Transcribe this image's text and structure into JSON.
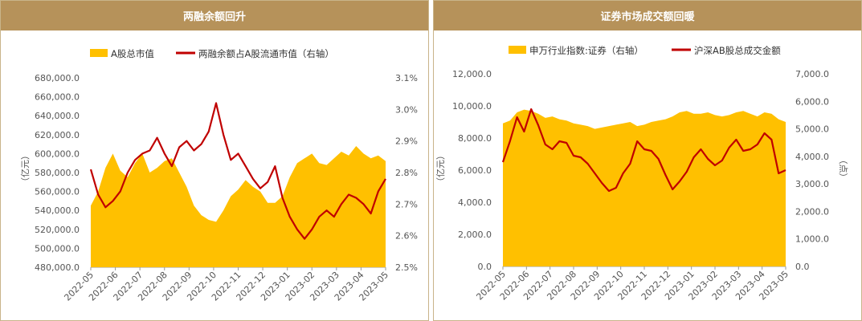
{
  "colors": {
    "area": "#ffc000",
    "line": "#c00000",
    "header": "#b6925a"
  },
  "chart_data": [
    {
      "type": "area+line",
      "title": "两融余额回升",
      "legend": [
        "A股总市值",
        "两融余额占A股流通市值（右轴）"
      ],
      "ylabel": "（亿元）",
      "ylim": [
        480000,
        680000
      ],
      "y2lim": [
        2.5,
        3.1
      ],
      "yticks": [
        "680,000.0",
        "660,000.0",
        "640,000.0",
        "620,000.0",
        "600,000.0",
        "580,000.0",
        "560,000.0",
        "540,000.0",
        "520,000.0",
        "500,000.0",
        "480,000.0"
      ],
      "y2ticks": [
        "3.1%",
        "3.0%",
        "2.9%",
        "2.8%",
        "2.7%",
        "2.6%",
        "2.5%"
      ],
      "xticks": [
        "2022-05",
        "2022-06",
        "2022-07",
        "2022-08",
        "2022-09",
        "2022-10",
        "2022-11",
        "2022-12",
        "2023-01",
        "2023-02",
        "2023-03",
        "2023-04",
        "2023-05"
      ],
      "series": [
        {
          "name": "A股总市值",
          "axis": "left",
          "values": [
            545000,
            560000,
            585000,
            600000,
            582000,
            575000,
            590000,
            600000,
            580000,
            585000,
            592000,
            595000,
            580000,
            565000,
            545000,
            535000,
            530000,
            528000,
            540000,
            555000,
            562000,
            572000,
            565000,
            560000,
            548000,
            548000,
            555000,
            575000,
            590000,
            595000,
            600000,
            590000,
            588000,
            595000,
            602000,
            598000,
            608000,
            600000,
            595000,
            598000,
            592000
          ]
        },
        {
          "name": "两融余额占A股流通市值（右轴）",
          "axis": "right",
          "values": [
            2.81,
            2.73,
            2.69,
            2.71,
            2.74,
            2.8,
            2.84,
            2.86,
            2.87,
            2.91,
            2.86,
            2.82,
            2.88,
            2.9,
            2.87,
            2.89,
            2.93,
            3.02,
            2.92,
            2.84,
            2.86,
            2.82,
            2.78,
            2.75,
            2.77,
            2.82,
            2.72,
            2.66,
            2.62,
            2.59,
            2.62,
            2.66,
            2.68,
            2.66,
            2.7,
            2.73,
            2.72,
            2.7,
            2.67,
            2.74,
            2.78
          ]
        }
      ]
    },
    {
      "type": "area+line",
      "title": "证券市场成交额回暖",
      "legend": [
        "申万行业指数:证券（右轴）",
        "沪深AB股总成交金额"
      ],
      "ylabel": "（亿元）",
      "y2label": "（点）",
      "ylim": [
        0,
        12000
      ],
      "y2lim": [
        0,
        7000
      ],
      "yticks": [
        "12,000.0",
        "10,000.0",
        "8,000.0",
        "6,000.0",
        "4,000.0",
        "2,000.0",
        "0.0"
      ],
      "y2ticks": [
        "7,000.0",
        "6,000.0",
        "5,000.0",
        "4,000.0",
        "3,000.0",
        "2,000.0",
        "1,000.0",
        "0.0"
      ],
      "xticks": [
        "2022-05",
        "2022-06",
        "2022-07",
        "2022-08",
        "2022-09",
        "2022-10",
        "2022-11",
        "2022-12",
        "2023-01",
        "2023-02",
        "2023-03",
        "2023-04",
        "2023-05"
      ],
      "series": [
        {
          "name": "申万行业指数:证券（右轴）",
          "axis": "right",
          "values": [
            5200,
            5300,
            5600,
            5700,
            5650,
            5550,
            5400,
            5450,
            5350,
            5300,
            5200,
            5150,
            5100,
            5000,
            5050,
            5100,
            5150,
            5200,
            5250,
            5100,
            5150,
            5250,
            5300,
            5350,
            5450,
            5600,
            5650,
            5550,
            5550,
            5600,
            5500,
            5450,
            5500,
            5600,
            5650,
            5550,
            5450,
            5600,
            5550,
            5350,
            5250
          ]
        },
        {
          "name": "沪深AB股总成交金额",
          "axis": "left",
          "values": [
            6500,
            7800,
            9300,
            8400,
            9800,
            8800,
            7600,
            7300,
            7800,
            7700,
            6900,
            6800,
            6400,
            5800,
            5200,
            4700,
            4900,
            5800,
            6400,
            7800,
            7300,
            7200,
            6700,
            5700,
            4800,
            5300,
            5900,
            6800,
            7300,
            6700,
            6300,
            6600,
            7400,
            7900,
            7200,
            7300,
            7600,
            8300,
            7900,
            5800,
            6000
          ]
        }
      ]
    }
  ]
}
